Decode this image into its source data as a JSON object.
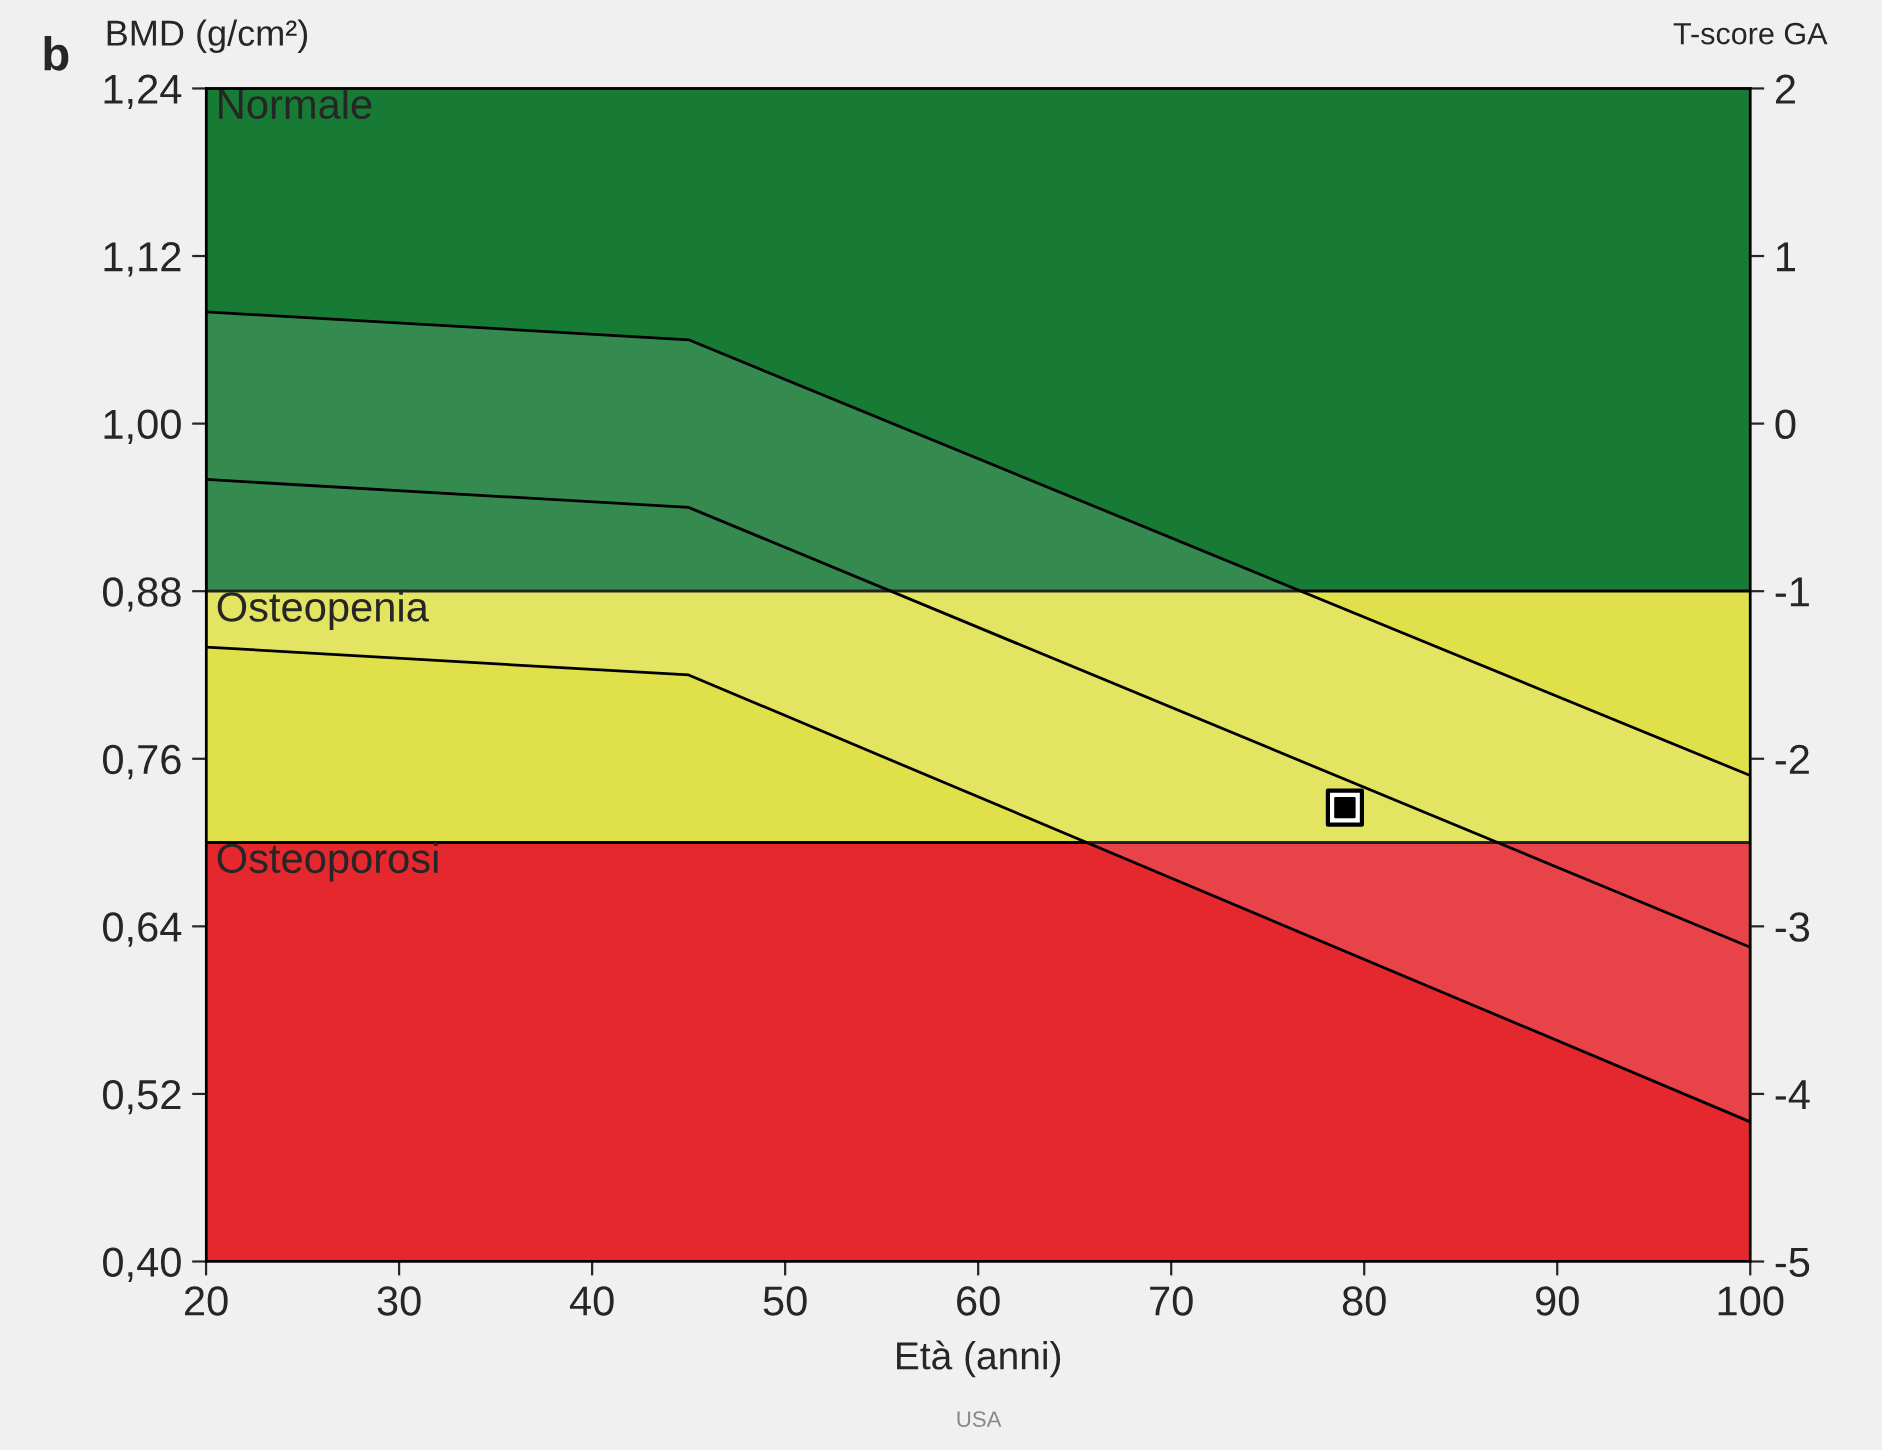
{
  "chart_data": {
    "type": "line",
    "xlabel": "Età (anni)",
    "ylabel": "BMD (g/cm²)",
    "y2label": "T-score GA",
    "xlim": [
      20,
      100
    ],
    "xticks": [
      20,
      30,
      40,
      50,
      60,
      70,
      80,
      90,
      100
    ],
    "ylim": [
      0.4,
      1.24
    ],
    "yticks": [
      {
        "value": 0.4,
        "label": "0,40"
      },
      {
        "value": 0.52,
        "label": "0,52"
      },
      {
        "value": 0.64,
        "label": "0,64"
      },
      {
        "value": 0.76,
        "label": "0,76"
      },
      {
        "value": 0.88,
        "label": "0,88"
      },
      {
        "value": 1.0,
        "label": "1,00"
      },
      {
        "value": 1.12,
        "label": "1,12"
      },
      {
        "value": 1.24,
        "label": "1,24"
      }
    ],
    "y2lim": [
      -5,
      2
    ],
    "y2ticks": [
      -5,
      -4,
      -3,
      -2,
      -1,
      0,
      1,
      2
    ],
    "grid": false,
    "legend": false,
    "bands": [
      {
        "axis": "y",
        "from": 0.88,
        "to": 1.24,
        "label": "Normale",
        "color": "#177a35"
      },
      {
        "axis": "y",
        "from": 0.7,
        "to": 0.88,
        "label": "Osteopenia",
        "color": "#dfe04a"
      },
      {
        "axis": "y",
        "from": 0.4,
        "to": 0.7,
        "label": "Osteoporosi",
        "color": "#e4282d"
      }
    ],
    "series": [
      {
        "color": "#000000",
        "x": [
          20,
          45,
          100
        ],
        "values": [
          0.96,
          0.94,
          0.625
        ],
        "lower": [
          0.84,
          0.82,
          0.5
        ],
        "upper": [
          1.08,
          1.06,
          0.748
        ]
      },
      {
        "type": "scatter",
        "color": "#000000",
        "marker": "square",
        "x": [
          79
        ],
        "values": [
          0.725
        ]
      }
    ],
    "annotations": [
      "b",
      "USA"
    ]
  }
}
